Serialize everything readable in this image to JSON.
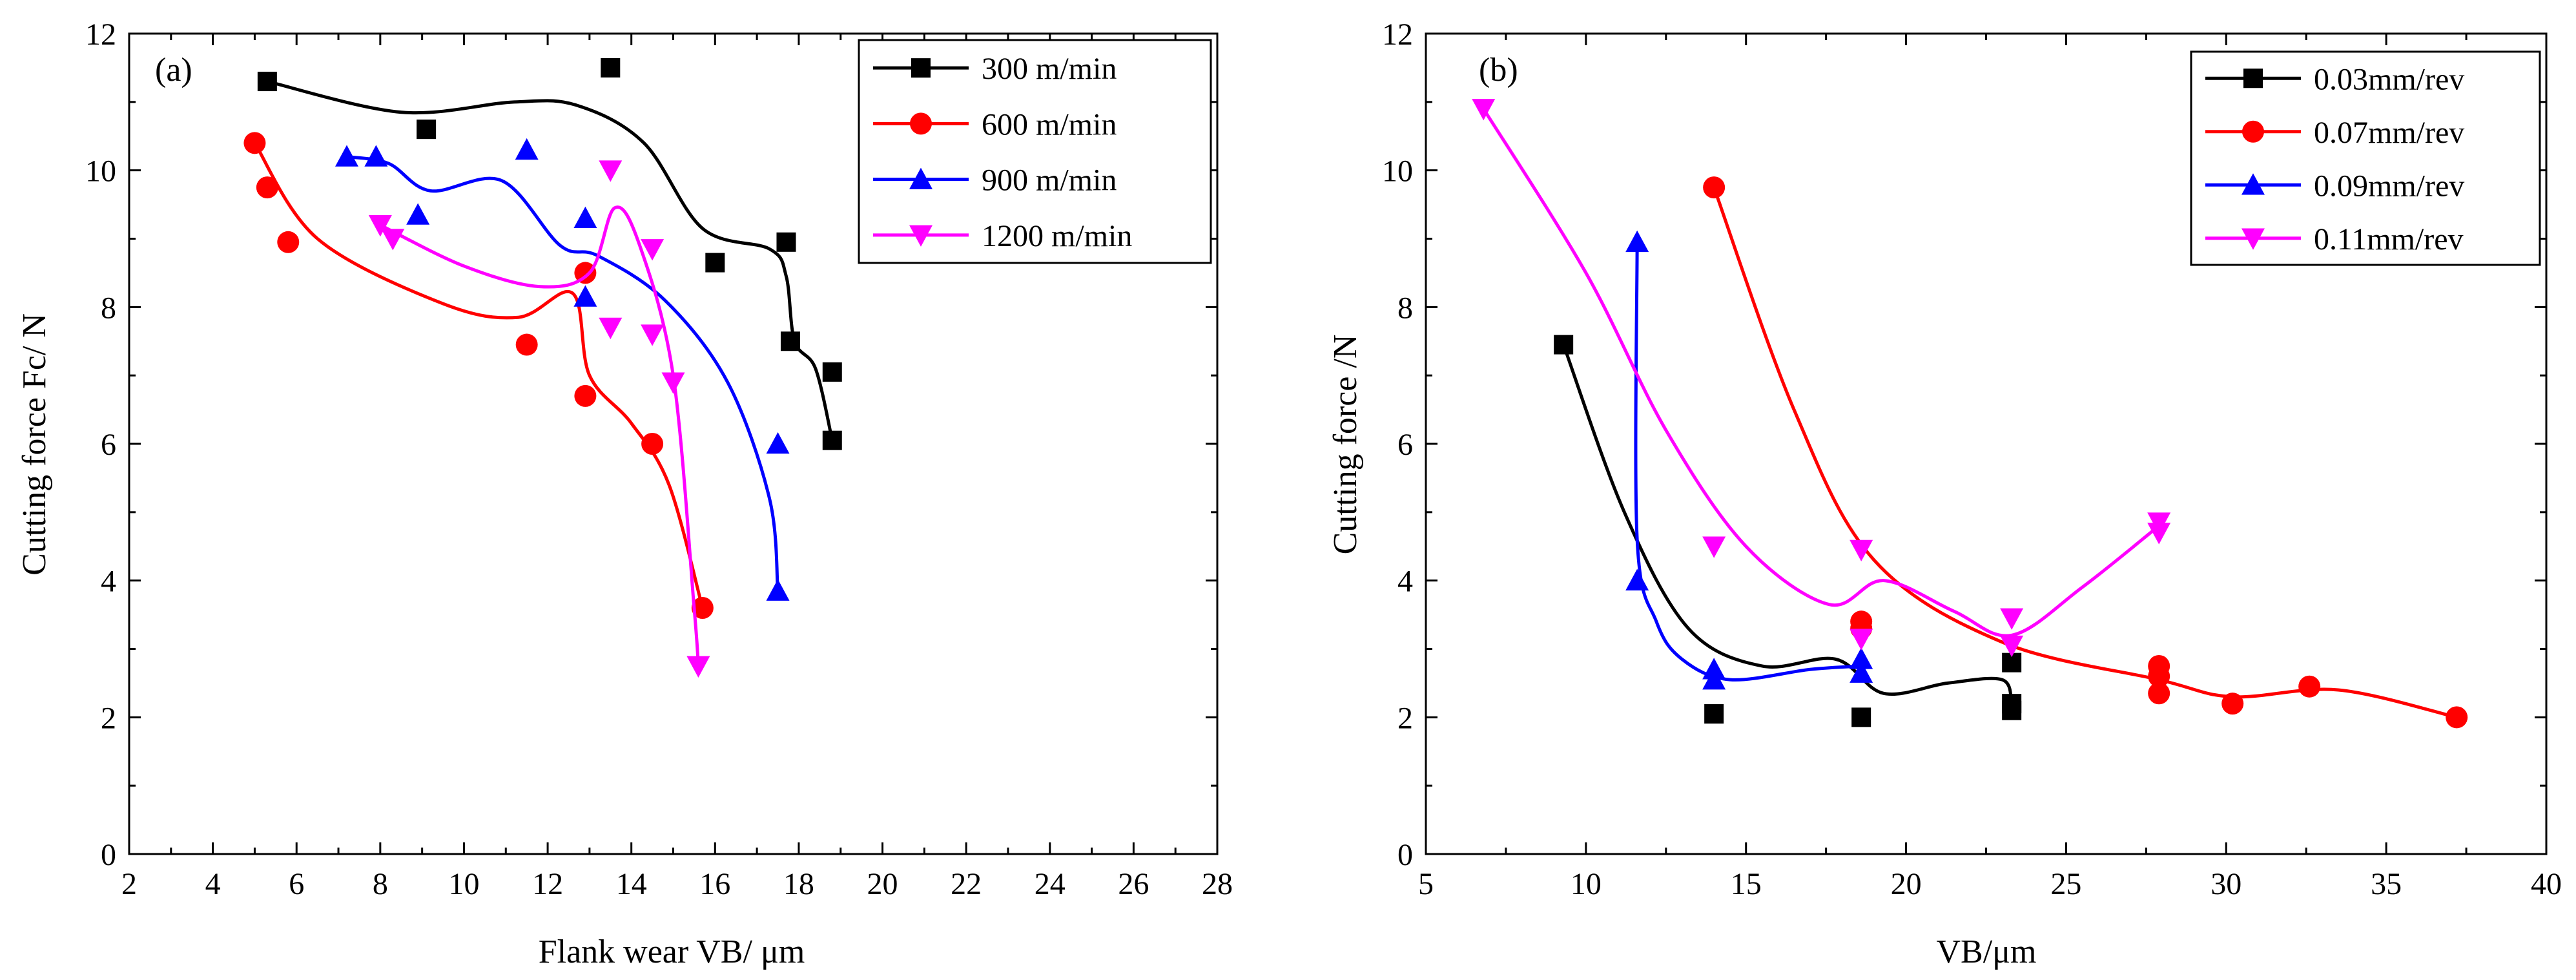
{
  "chart_data": [
    {
      "type": "scatter",
      "panel_label": "(a)",
      "title": "",
      "xlabel": "Flank wear VB/ μm",
      "ylabel": "Cutting force Fc/ N",
      "xlim": [
        2,
        28
      ],
      "ylim": [
        0,
        12
      ],
      "xticks": [
        2,
        4,
        6,
        8,
        10,
        12,
        14,
        16,
        18,
        20,
        22,
        24,
        26,
        28
      ],
      "yticks": [
        0,
        2,
        4,
        6,
        8,
        10,
        12
      ],
      "legend_position": "top-right",
      "series": [
        {
          "name": "300 m/min",
          "color": "#000000",
          "marker": "square",
          "points": [
            [
              5.3,
              11.3
            ],
            [
              9.1,
              10.6
            ],
            [
              13.5,
              11.5
            ],
            [
              16.0,
              8.65
            ],
            [
              17.7,
              8.95
            ],
            [
              17.8,
              7.5
            ],
            [
              18.8,
              7.05
            ],
            [
              18.8,
              6.05
            ]
          ],
          "fit": [
            [
              5.3,
              11.3
            ],
            [
              8.5,
              10.85
            ],
            [
              11.2,
              11.0
            ],
            [
              12.7,
              10.95
            ],
            [
              14.3,
              10.4
            ],
            [
              15.7,
              9.15
            ],
            [
              17.3,
              8.85
            ],
            [
              17.7,
              8.45
            ],
            [
              17.9,
              7.5
            ],
            [
              18.4,
              7.1
            ],
            [
              18.8,
              6.05
            ]
          ]
        },
        {
          "name": "600 m/min",
          "color": "#ff0000",
          "marker": "circle",
          "points": [
            [
              5.0,
              10.4
            ],
            [
              5.3,
              9.75
            ],
            [
              5.8,
              8.95
            ],
            [
              11.5,
              7.45
            ],
            [
              12.9,
              8.5
            ],
            [
              12.9,
              6.7
            ],
            [
              14.5,
              6.0
            ],
            [
              15.7,
              3.6
            ]
          ],
          "fit": [
            [
              5.0,
              10.4
            ],
            [
              6.5,
              9.0
            ],
            [
              9.5,
              8.05
            ],
            [
              11.3,
              7.85
            ],
            [
              12.6,
              8.2
            ],
            [
              13.0,
              7.0
            ],
            [
              14.0,
              6.3
            ],
            [
              14.9,
              5.4
            ],
            [
              15.7,
              3.6
            ]
          ]
        },
        {
          "name": "900 m/min",
          "color": "#0000ff",
          "marker": "triangle-up",
          "points": [
            [
              7.2,
              10.2
            ],
            [
              7.9,
              10.2
            ],
            [
              8.9,
              9.35
            ],
            [
              11.5,
              10.3
            ],
            [
              12.9,
              9.3
            ],
            [
              12.9,
              8.15
            ],
            [
              17.5,
              6.0
            ],
            [
              17.5,
              3.85
            ]
          ],
          "fit": [
            [
              7.2,
              10.2
            ],
            [
              8.2,
              10.1
            ],
            [
              9.2,
              9.7
            ],
            [
              10.9,
              9.85
            ],
            [
              12.3,
              8.9
            ],
            [
              13.2,
              8.75
            ],
            [
              14.8,
              8.1
            ],
            [
              16.3,
              6.9
            ],
            [
              17.3,
              5.2
            ],
            [
              17.5,
              3.85
            ]
          ]
        },
        {
          "name": "1200 m/min",
          "color": "#ff00ff",
          "marker": "triangle-down",
          "points": [
            [
              8.0,
              9.2
            ],
            [
              8.3,
              9.0
            ],
            [
              13.5,
              10.0
            ],
            [
              13.5,
              7.7
            ],
            [
              14.5,
              8.85
            ],
            [
              14.5,
              7.6
            ],
            [
              15.0,
              6.9
            ],
            [
              15.6,
              2.75
            ]
          ],
          "fit": [
            [
              8.0,
              9.2
            ],
            [
              10.0,
              8.6
            ],
            [
              11.8,
              8.3
            ],
            [
              13.0,
              8.5
            ],
            [
              13.6,
              9.45
            ],
            [
              14.2,
              8.9
            ],
            [
              15.0,
              7.0
            ],
            [
              15.5,
              3.6
            ],
            [
              15.6,
              2.75
            ]
          ]
        }
      ]
    },
    {
      "type": "scatter",
      "panel_label": "(b)",
      "title": "",
      "xlabel": "VB/μm",
      "ylabel": "Cutting force /N",
      "xlim": [
        5,
        40
      ],
      "ylim": [
        0,
        12
      ],
      "xticks": [
        5,
        10,
        15,
        20,
        25,
        30,
        35,
        40
      ],
      "yticks": [
        0,
        2,
        4,
        6,
        8,
        10,
        12
      ],
      "legend_position": "top-right",
      "series": [
        {
          "name": "0.03mm/rev",
          "color": "#000000",
          "marker": "square",
          "points": [
            [
              9.3,
              7.45
            ],
            [
              14.0,
              2.05
            ],
            [
              18.6,
              2.0
            ],
            [
              23.3,
              2.8
            ],
            [
              23.3,
              2.2
            ],
            [
              23.3,
              2.1
            ]
          ],
          "fit": [
            [
              9.3,
              7.45
            ],
            [
              11.2,
              5.0
            ],
            [
              13.2,
              3.3
            ],
            [
              15.5,
              2.75
            ],
            [
              17.8,
              2.85
            ],
            [
              19.3,
              2.35
            ],
            [
              21.3,
              2.5
            ],
            [
              23.0,
              2.55
            ],
            [
              23.3,
              2.2
            ]
          ]
        },
        {
          "name": "0.07mm/rev",
          "color": "#ff0000",
          "marker": "circle",
          "points": [
            [
              14.0,
              9.75
            ],
            [
              18.6,
              3.4
            ],
            [
              18.6,
              3.3
            ],
            [
              27.9,
              2.75
            ],
            [
              27.9,
              2.6
            ],
            [
              27.9,
              2.35
            ],
            [
              30.2,
              2.2
            ],
            [
              32.6,
              2.45
            ],
            [
              37.2,
              2.0
            ]
          ],
          "fit": [
            [
              14.0,
              9.75
            ],
            [
              16.5,
              6.5
            ],
            [
              19.0,
              4.3
            ],
            [
              23.0,
              3.1
            ],
            [
              27.9,
              2.55
            ],
            [
              30.2,
              2.3
            ],
            [
              33.5,
              2.4
            ],
            [
              37.2,
              2.0
            ]
          ]
        },
        {
          "name": "0.09mm/rev",
          "color": "#0000ff",
          "marker": "triangle-up",
          "points": [
            [
              11.6,
              8.95
            ],
            [
              11.6,
              4.0
            ],
            [
              14.0,
              2.7
            ],
            [
              14.0,
              2.55
            ],
            [
              18.6,
              2.85
            ],
            [
              18.6,
              2.65
            ]
          ],
          "fit": [
            [
              11.6,
              8.95
            ],
            [
              11.6,
              4.6
            ],
            [
              12.2,
              3.4
            ],
            [
              13.0,
              2.85
            ],
            [
              14.5,
              2.55
            ],
            [
              17.0,
              2.7
            ],
            [
              18.6,
              2.75
            ]
          ]
        },
        {
          "name": "0.11mm/rev",
          "color": "#ff00ff",
          "marker": "triangle-down",
          "points": [
            [
              6.8,
              10.9
            ],
            [
              14.0,
              4.5
            ],
            [
              18.6,
              4.45
            ],
            [
              18.6,
              3.15
            ],
            [
              23.3,
              3.45
            ],
            [
              23.3,
              3.05
            ],
            [
              27.9,
              4.85
            ],
            [
              27.9,
              4.7
            ]
          ],
          "fit": [
            [
              6.8,
              10.9
            ],
            [
              10.0,
              8.5
            ],
            [
              12.5,
              6.2
            ],
            [
              15.0,
              4.5
            ],
            [
              17.6,
              3.65
            ],
            [
              19.3,
              4.0
            ],
            [
              21.5,
              3.55
            ],
            [
              23.3,
              3.2
            ],
            [
              25.5,
              3.9
            ],
            [
              27.9,
              4.8
            ]
          ]
        }
      ]
    }
  ]
}
